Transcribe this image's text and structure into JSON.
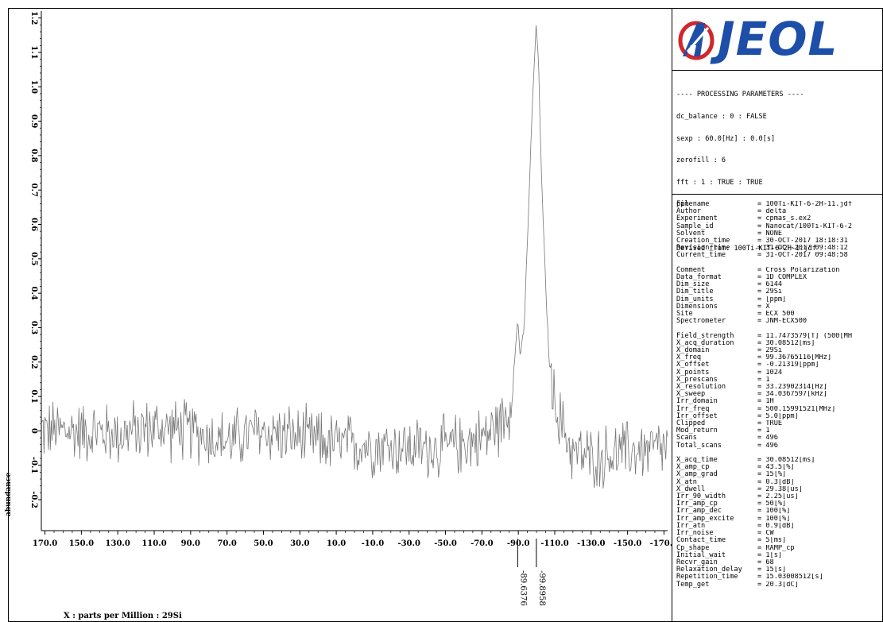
{
  "chart_data": {
    "type": "line",
    "title": "",
    "xlabel": "X : parts per Million : 29Si",
    "ylabel": "abundance",
    "xlim": [
      172,
      -172
    ],
    "ylim": [
      -0.29,
      1.22
    ],
    "x_ticks": [
      170.0,
      150.0,
      130.0,
      110.0,
      90.0,
      70.0,
      50.0,
      30.0,
      10.0,
      -10.0,
      -30.0,
      -50.0,
      -70.0,
      -90.0,
      -110.0,
      -130.0,
      -150.0,
      -170.0
    ],
    "x_tick_labels": [
      "170.0",
      "150.0",
      "130.0",
      "110.0",
      "90.0",
      "70.0",
      "50.0",
      "30.0",
      "10.0",
      "-10.0",
      "-30.0",
      "-50.0",
      "-70.0",
      "-90.0",
      "-110.0",
      "-130.0",
      "-150.0",
      "-170.0"
    ],
    "y_ticks": [
      -0.2,
      -0.1,
      0,
      0.1,
      0.2,
      0.3,
      0.4,
      0.5,
      0.6,
      0.7,
      0.8,
      0.9,
      1.0,
      1.1,
      1.2
    ],
    "y_tick_labels": [
      "-0.2",
      "-0.1",
      "0",
      "0.1",
      "0.2",
      "0.3",
      "0.4",
      "0.5",
      "0.6",
      "0.7",
      "0.8",
      "0.9",
      "1.0",
      "1.1",
      "1.2"
    ],
    "grid": false,
    "noise_level": 0.11,
    "series": [
      {
        "x": [
          172,
          150,
          130,
          110,
          90,
          70,
          50,
          30,
          10,
          -10,
          -30,
          -50,
          -70,
          -80,
          -85,
          -88,
          -89.6,
          -91,
          -93,
          -95,
          -97,
          -99,
          -99.9,
          -101,
          -103,
          -105,
          -107,
          -110,
          -115,
          -120,
          -130,
          -150,
          -172
        ],
        "y": [
          0,
          0,
          -0.01,
          0.01,
          0,
          -0.03,
          0,
          -0.02,
          -0.04,
          -0.04,
          -0.05,
          -0.05,
          -0.02,
          0.02,
          0.07,
          0.2,
          0.33,
          0.22,
          0.28,
          0.55,
          0.85,
          1.1,
          1.18,
          1.08,
          0.7,
          0.42,
          0.2,
          0.08,
          0.0,
          -0.06,
          -0.08,
          -0.06,
          -0.05
        ]
      }
    ],
    "peak_labels": [
      {
        "x": -89.6376,
        "label": "-89.6376"
      },
      {
        "x": -99.8958,
        "label": "-99.8958"
      }
    ]
  },
  "logo": {
    "text": "JEOL"
  },
  "processing": {
    "lines": [
      "---- PROCESSING PARAMETERS ----",
      "dc_balance : 0 : FALSE",
      "sexp : 60.0[Hz] : 0.0[s]",
      "zerofill : 6",
      "fft : 1 : TRUE : TRUE",
      "ppm",
      "",
      "Derived from: 100Ti-KIT-6-2H-1.jdf"
    ]
  },
  "parameters": [
    {
      "key": "Filename",
      "value": "= 100Ti-KIT-6-2H-11.jdf"
    },
    {
      "key": "Author",
      "value": "= delta"
    },
    {
      "key": "Experiment",
      "value": "= cpmas_s.ex2"
    },
    {
      "key": "Sample_id",
      "value": "= Nanocat/100Ti-KIT-6-2"
    },
    {
      "key": "Solvent",
      "value": "= NONE"
    },
    {
      "key": "Creation_time",
      "value": "= 30-OCT-2017 18:18:31"
    },
    {
      "key": "Revision_time",
      "value": "= 31-OCT-2017 09:48:12"
    },
    {
      "key": "Current_time",
      "value": "= 31-OCT-2017 09:48:58"
    },
    {
      "key": "",
      "value": ""
    },
    {
      "key": "Comment",
      "value": "= Cross Polarization"
    },
    {
      "key": "Data_format",
      "value": "= 1D COMPLEX"
    },
    {
      "key": "Dim_size",
      "value": "= 6144"
    },
    {
      "key": "Dim_title",
      "value": "= 29Si"
    },
    {
      "key": "Dim_units",
      "value": "= [ppm]"
    },
    {
      "key": "Dimensions",
      "value": "= X"
    },
    {
      "key": "Site",
      "value": "= ECX 500"
    },
    {
      "key": "Spectrometer",
      "value": "= JNM-ECX500"
    },
    {
      "key": "",
      "value": ""
    },
    {
      "key": "Field_strength",
      "value": "= 11.7473579[T] (500[MH"
    },
    {
      "key": "X_acq_duration",
      "value": "= 30.08512[ms]"
    },
    {
      "key": "X_domain",
      "value": "= 29Si"
    },
    {
      "key": "X_freq",
      "value": "= 99.36765116[MHz]"
    },
    {
      "key": "X_offset",
      "value": "= -0.21319[ppm]"
    },
    {
      "key": "X_points",
      "value": "= 1024"
    },
    {
      "key": "X_prescans",
      "value": "= 1"
    },
    {
      "key": "X_resolution",
      "value": "= 33.23902314[Hz]"
    },
    {
      "key": "X_sweep",
      "value": "= 34.0367597[kHz]"
    },
    {
      "key": "Irr_domain",
      "value": "= 1H"
    },
    {
      "key": "Irr_freq",
      "value": "= 500.15991521[MHz]"
    },
    {
      "key": "Irr_offset",
      "value": "= 5.0[ppm]"
    },
    {
      "key": "Clipped",
      "value": "= TRUE"
    },
    {
      "key": "Mod_return",
      "value": "= 1"
    },
    {
      "key": "Scans",
      "value": "= 496"
    },
    {
      "key": "Total_scans",
      "value": "= 496"
    },
    {
      "key": "",
      "value": ""
    },
    {
      "key": "X_acq_time",
      "value": "= 30.08512[ms]"
    },
    {
      "key": "X_amp_cp",
      "value": "= 43.5[%]"
    },
    {
      "key": "X_amp_grad",
      "value": "= 15[%]"
    },
    {
      "key": "X_atn",
      "value": "= 0.3[dB]"
    },
    {
      "key": "X_dwell",
      "value": "= 29.38[us]"
    },
    {
      "key": "Irr_90_width",
      "value": "= 2.25[us]"
    },
    {
      "key": "Irr_amp_cp",
      "value": "= 50[%]"
    },
    {
      "key": "Irr_amp_dec",
      "value": "= 100[%]"
    },
    {
      "key": "Irr_amp_excite",
      "value": "= 100[%]"
    },
    {
      "key": "Irr_atn",
      "value": "= 0.9[dB]"
    },
    {
      "key": "Irr_noise",
      "value": "= CW"
    },
    {
      "key": "Contact_time",
      "value": "= 5[ms]"
    },
    {
      "key": "Cp_shape",
      "value": "= RAMP_cp"
    },
    {
      "key": "Initial_wait",
      "value": "= 1[s]"
    },
    {
      "key": "Recvr_gain",
      "value": "= 68"
    },
    {
      "key": "Relaxation_delay",
      "value": "= 15[s]"
    },
    {
      "key": "Repetition_time",
      "value": "= 15.03008512[s]"
    },
    {
      "key": "Temp_get",
      "value": "= 20.3[dC]"
    }
  ]
}
